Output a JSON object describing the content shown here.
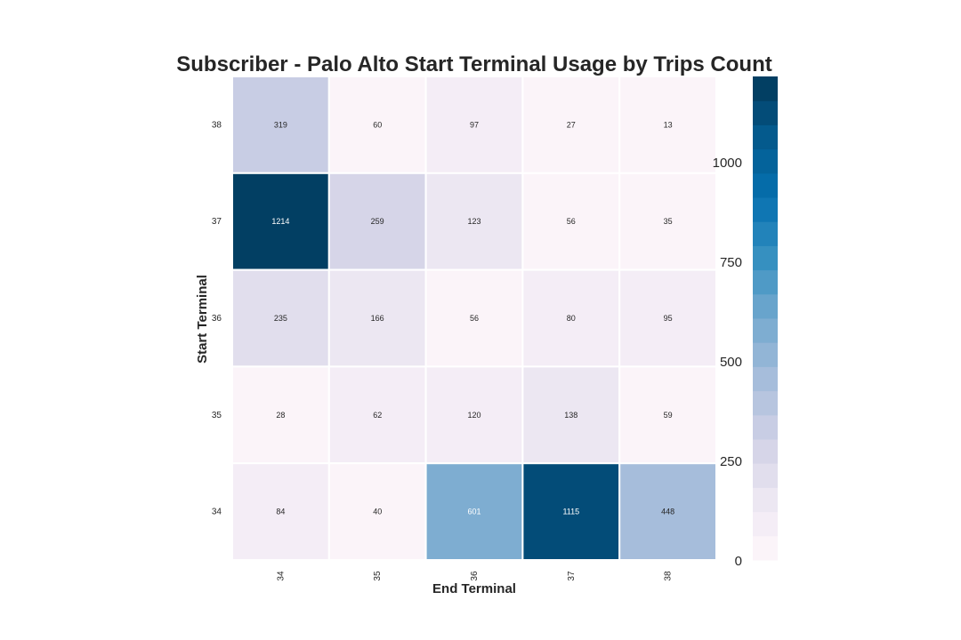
{
  "chart_data": {
    "type": "heatmap",
    "title": "Subscriber - Palo Alto Start Terminal Usage by Trips Count",
    "xlabel": "End Terminal",
    "ylabel": "Start Terminal",
    "x_categories": [
      "34",
      "35",
      "36",
      "37",
      "38"
    ],
    "y_categories": [
      "38",
      "37",
      "36",
      "35",
      "34"
    ],
    "values": [
      [
        319,
        60,
        97,
        27,
        13
      ],
      [
        1214,
        259,
        123,
        56,
        35
      ],
      [
        235,
        166,
        56,
        80,
        95
      ],
      [
        28,
        62,
        120,
        138,
        59
      ],
      [
        84,
        40,
        601,
        1115,
        448
      ]
    ],
    "colorbar": {
      "ticks": [
        0,
        250,
        500,
        750,
        1000
      ],
      "vmin": 0,
      "vmax": 1214,
      "colormap": "PuBu",
      "colors": [
        "#fff7fb",
        "#ece7f2",
        "#d0d1e6",
        "#a6bddb",
        "#74a9cf",
        "#3690c0",
        "#0570b0",
        "#045a8d",
        "#023858"
      ]
    },
    "grid": true
  }
}
